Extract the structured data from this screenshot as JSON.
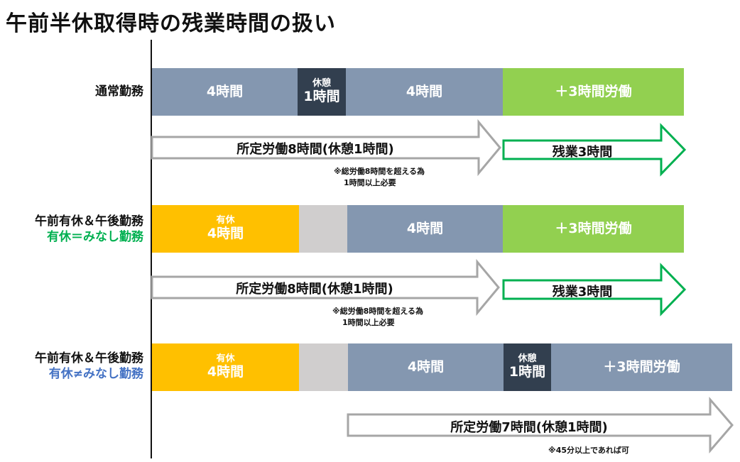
{
  "title": "午前半休取得時の残業時間の扱い",
  "rows": [
    {
      "label": "通常勤務",
      "blocks": {
        "a": {
          "text": "4時間"
        },
        "b": {
          "top": "休憩",
          "bottom": "1時間"
        },
        "c": {
          "text": "4時間"
        },
        "d": {
          "text": "＋3時間労働"
        }
      },
      "arrow_scheduled": "所定労働8時間(休憩1時間)",
      "arrow_overtime": "残業3時間",
      "note_line1": "※総労働8時間を超える為",
      "note_line2": "1時間以上必要"
    },
    {
      "label": "午前有休＆午後勤務",
      "sublabel": "有休＝みなし勤務",
      "blocks": {
        "a": {
          "top": "有休",
          "bottom": "4時間"
        },
        "c": {
          "text": "4時間"
        },
        "d": {
          "text": "＋3時間労働"
        }
      },
      "arrow_scheduled": "所定労働8時間(休憩1時間)",
      "arrow_overtime": "残業3時間",
      "note_line1": "※総労働8時間を超える為",
      "note_line2": "1時間以上必要"
    },
    {
      "label": "午前有休＆午後勤務",
      "sublabel": "有休≠みなし勤務",
      "blocks": {
        "a": {
          "top": "有休",
          "bottom": "4時間"
        },
        "c": {
          "text": "4時間"
        },
        "b": {
          "top": "休憩",
          "bottom": "1時間"
        },
        "d": {
          "text": "＋3時間労働"
        }
      },
      "arrow_scheduled": "所定労働7時間(休憩1時間)",
      "note_line1": "※45分以上であれば可"
    }
  ],
  "colors": {
    "work": "#8497b0",
    "break": "#323f4f",
    "extra": "#92d050",
    "leave": "#ffc000",
    "gap": "#d0cece",
    "label_green": "#00b050",
    "label_blue": "#4472c4",
    "arrow_gray": "#a6a6a6",
    "arrow_green": "#00b050"
  }
}
